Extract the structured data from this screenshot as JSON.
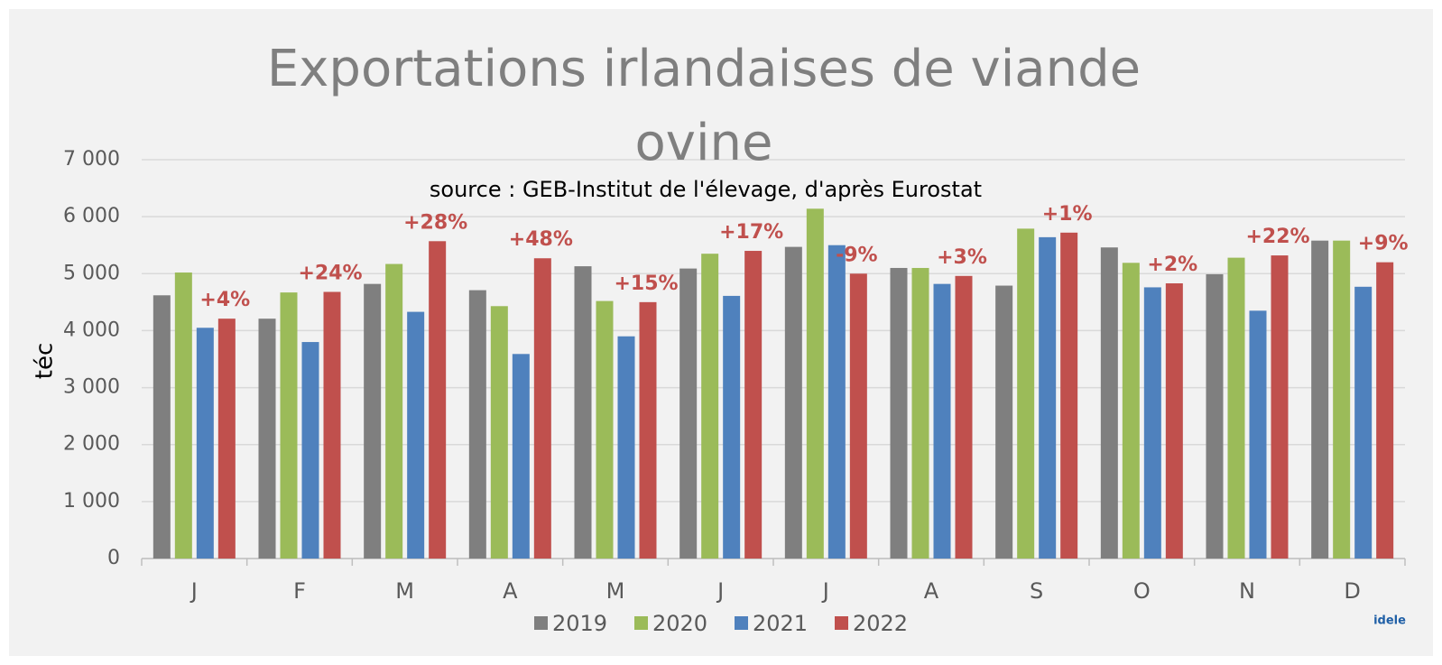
{
  "chart_data": {
    "type": "bar",
    "title": "Exportations irlandaises de viande ovine",
    "subtitle": "source : GEB-Institut de l'élevage, d'après Eurostat",
    "y_label": "téc",
    "categories": [
      "J",
      "F",
      "M",
      "A",
      "M",
      "J",
      "J",
      "A",
      "S",
      "O",
      "N",
      "D"
    ],
    "series": [
      {
        "name": "2019",
        "color": "#7f7f7f",
        "values": [
          4620,
          4210,
          4820,
          4710,
          5130,
          5090,
          5470,
          5100,
          4790,
          5460,
          4990,
          5580
        ]
      },
      {
        "name": "2020",
        "color": "#9bbb59",
        "values": [
          5020,
          4670,
          5170,
          4430,
          4520,
          5350,
          6140,
          5100,
          5790,
          5190,
          5280,
          5580
        ]
      },
      {
        "name": "2021",
        "color": "#4f81bd",
        "values": [
          4050,
          3800,
          4330,
          3590,
          3900,
          4610,
          5500,
          4820,
          5640,
          4760,
          4350,
          4770
        ]
      },
      {
        "name": "2022",
        "color": "#c0504d",
        "values": [
          4210,
          4680,
          5570,
          5270,
          4500,
          5400,
          5000,
          4960,
          5720,
          4830,
          5320,
          5200
        ]
      }
    ],
    "annotations": [
      "+4%",
      "+24%",
      "+28%",
      "+48%",
      "+15%",
      "+17%",
      "-9%",
      "+3%",
      "+1%",
      "+2%",
      "+22%",
      "+9%"
    ],
    "ylim": [
      0,
      7000
    ],
    "yticks": [
      0,
      {
        "value": 1000,
        "label": "1 000"
      },
      {
        "value": 2000,
        "label": "2 000"
      },
      {
        "value": 3000,
        "label": "3 000"
      },
      {
        "value": 4000,
        "label": "4 000"
      },
      {
        "value": 5000,
        "label": "5 000"
      },
      {
        "value": 6000,
        "label": "6 000"
      },
      {
        "value": 7000,
        "label": "7 000"
      }
    ],
    "grid": true,
    "legend": "bottom",
    "logo": "idele"
  }
}
